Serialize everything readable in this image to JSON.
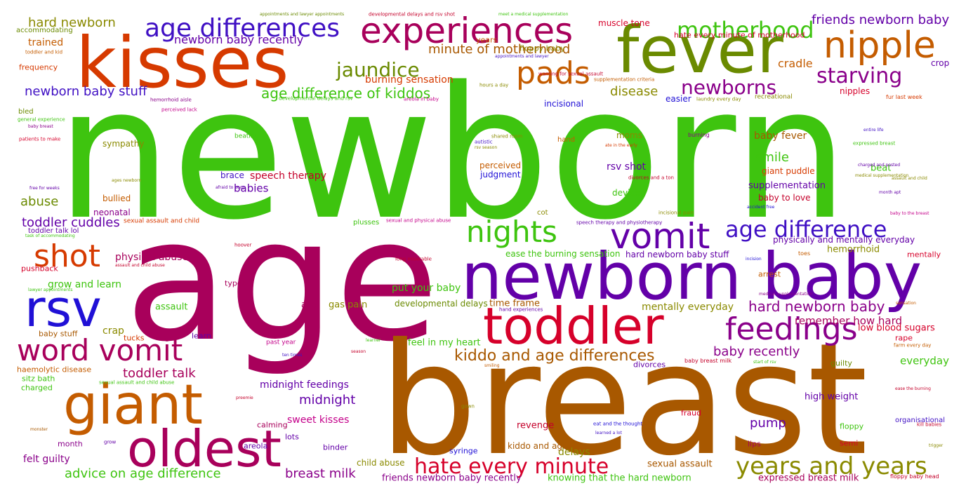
{
  "word_cloud": {
    "words": [
      {
        "text": "newborn",
        "color": "#3ec40f"
      },
      {
        "text": "age",
        "color": "#a8005b"
      },
      {
        "text": "breast",
        "color": "#a85800"
      },
      {
        "text": "kisses",
        "color": "#d63a00"
      },
      {
        "text": "fever",
        "color": "#6a8a00"
      },
      {
        "text": "experiences",
        "color": "#a8005b"
      },
      {
        "text": "newborn baby",
        "color": "#6300a8"
      },
      {
        "text": "toddler",
        "color": "#d6002a"
      },
      {
        "text": "giant",
        "color": "#c45c00"
      },
      {
        "text": "oldest",
        "color": "#a8005b"
      },
      {
        "text": "rsv",
        "color": "#2010d6"
      },
      {
        "text": "nipple",
        "color": "#c45c00"
      },
      {
        "text": "pads",
        "color": "#c45c00"
      },
      {
        "text": "vomit",
        "color": "#6300a8"
      },
      {
        "text": "nights",
        "color": "#3ec40f"
      },
      {
        "text": "shot",
        "color": "#d63a00"
      },
      {
        "text": "word vomit",
        "color": "#a8005b"
      },
      {
        "text": "feedings",
        "color": "#8a008a"
      },
      {
        "text": "age differences",
        "color": "#4010c4"
      },
      {
        "text": "motherhood",
        "color": "#3ec40f"
      },
      {
        "text": "age difference",
        "color": "#4010c4"
      },
      {
        "text": "years and years",
        "color": "#8a8a00"
      },
      {
        "text": "hate every minute",
        "color": "#d6002a"
      },
      {
        "text": "jaundice",
        "color": "#6a8a00"
      },
      {
        "text": "starving",
        "color": "#8a008a"
      },
      {
        "text": "newborns",
        "color": "#8a008a"
      },
      {
        "text": "hard newborn baby",
        "color": "#8a008a"
      },
      {
        "text": "kiddo and age differences",
        "color": "#a85800"
      },
      {
        "text": "age difference of kiddos",
        "color": "#3ec40f"
      },
      {
        "text": "newborn baby stuff",
        "color": "#4010c4"
      },
      {
        "text": "minute of motherhood",
        "color": "#a85800"
      },
      {
        "text": "friends newborn baby",
        "color": "#6300a8"
      },
      {
        "text": "newborn baby recently",
        "color": "#6300a8"
      },
      {
        "text": "hard newborn",
        "color": "#8a8a00"
      },
      {
        "text": "advice on age difference",
        "color": "#3ec40f"
      },
      {
        "text": "breast milk",
        "color": "#8a008a"
      },
      {
        "text": "baby recently",
        "color": "#8a008a"
      },
      {
        "text": "toddler talk",
        "color": "#a8005b"
      },
      {
        "text": "toddler cuddles",
        "color": "#6300a8"
      },
      {
        "text": "disease",
        "color": "#8a8a00"
      },
      {
        "text": "smile",
        "color": "#3ec40f"
      },
      {
        "text": "midnight",
        "color": "#6300a8"
      },
      {
        "text": "pump",
        "color": "#6300a8"
      },
      {
        "text": "abuse",
        "color": "#6a8a00"
      },
      {
        "text": "cradle",
        "color": "#c45c00"
      },
      {
        "text": "remember how hard",
        "color": "#a8005b"
      },
      {
        "text": "mentally everyday",
        "color": "#8a8a00"
      },
      {
        "text": "everyday",
        "color": "#3ec40f"
      },
      {
        "text": "rsv shot",
        "color": "#6300a8"
      },
      {
        "text": "trained",
        "color": "#c45c00"
      },
      {
        "text": "speech therapy",
        "color": "#c4002a"
      },
      {
        "text": "babies",
        "color": "#6300a8"
      },
      {
        "text": "midnight feedings",
        "color": "#6300a8"
      },
      {
        "text": "sweet kisses",
        "color": "#c4008a"
      },
      {
        "text": "felt guilty",
        "color": "#8a008a"
      },
      {
        "text": "delays",
        "color": "#8a8a00"
      },
      {
        "text": "baby fever",
        "color": "#a85800"
      },
      {
        "text": "burning sensation",
        "color": "#d63a00"
      },
      {
        "text": "physical abuse",
        "color": "#a8005b"
      },
      {
        "text": "grow and learn",
        "color": "#3ec40f"
      },
      {
        "text": "put your baby",
        "color": "#3ec40f"
      },
      {
        "text": "hemorrhoid",
        "color": "#8a8a00"
      },
      {
        "text": "assault",
        "color": "#3ec40f"
      },
      {
        "text": "gas pain",
        "color": "#8a8a00"
      },
      {
        "text": "ate",
        "color": "#a8005b"
      },
      {
        "text": "time frame",
        "color": "#a85800"
      },
      {
        "text": "developmental delays",
        "color": "#6a8a00"
      },
      {
        "text": "crap",
        "color": "#8a8a00"
      },
      {
        "text": "feel in my heart",
        "color": "#3ec40f"
      },
      {
        "text": "high weight",
        "color": "#6300a8"
      },
      {
        "text": "supplementation",
        "color": "#6300a8"
      },
      {
        "text": "low blood sugars",
        "color": "#d6002a"
      },
      {
        "text": "sexual assault",
        "color": "#a85800"
      },
      {
        "text": "friends newborn baby recently",
        "color": "#8a008a"
      },
      {
        "text": "knowing that the hard newborn",
        "color": "#3ec40f"
      },
      {
        "text": "expressed breast milk",
        "color": "#a8005b"
      },
      {
        "text": "child abuse",
        "color": "#8a8a00"
      },
      {
        "text": "revenge",
        "color": "#c4002a"
      },
      {
        "text": "kiddo and age",
        "color": "#a85800"
      },
      {
        "text": "physically and mentally everyday",
        "color": "#6300a8"
      },
      {
        "text": "hard newborn baby stuff",
        "color": "#6300a8"
      },
      {
        "text": "ease the burning sensation",
        "color": "#3ec40f"
      },
      {
        "text": "giant puddle",
        "color": "#d63a00"
      },
      {
        "text": "baby to love",
        "color": "#c4002a"
      },
      {
        "text": "beat",
        "color": "#3ec40f"
      },
      {
        "text": "perceived",
        "color": "#c45c00"
      },
      {
        "text": "judgment",
        "color": "#2010d6"
      },
      {
        "text": "bullied",
        "color": "#c45c00"
      },
      {
        "text": "neonatal",
        "color": "#8a008a"
      },
      {
        "text": "device",
        "color": "#3ec40f"
      },
      {
        "text": "brace",
        "color": "#4010c4"
      },
      {
        "text": "sympathy",
        "color": "#8a8a00"
      },
      {
        "text": "moms",
        "color": "#8a8a00"
      },
      {
        "text": "incisional",
        "color": "#2010d6"
      },
      {
        "text": "easier",
        "color": "#2010d6"
      },
      {
        "text": "crop",
        "color": "#6300a8"
      },
      {
        "text": "nipples",
        "color": "#d6002a"
      },
      {
        "text": "muscle tone",
        "color": "#d6002a"
      },
      {
        "text": "hate every minute of motherhood",
        "color": "#d6002a"
      },
      {
        "text": "floppy baby",
        "color": "#8a8a00"
      },
      {
        "text": "years",
        "color": "#c45c00"
      },
      {
        "text": "frequency",
        "color": "#d63a00"
      },
      {
        "text": "accommodating",
        "color": "#6a8a00"
      },
      {
        "text": "bled",
        "color": "#6a8a00"
      },
      {
        "text": "hand",
        "color": "#c45c00"
      },
      {
        "text": "cot",
        "color": "#8a8a00"
      },
      {
        "text": "plusses",
        "color": "#3ec40f"
      },
      {
        "text": "arrest",
        "color": "#c45c00"
      },
      {
        "text": "mentally",
        "color": "#d6002a"
      },
      {
        "text": "typed",
        "color": "#a8005b"
      },
      {
        "text": "pushback",
        "color": "#d6002a"
      },
      {
        "text": "baby stuff",
        "color": "#a85800"
      },
      {
        "text": "tucks",
        "color": "#d63a00"
      },
      {
        "text": "learn",
        "color": "#6300a8"
      },
      {
        "text": "haemolytic disease",
        "color": "#c45c00"
      },
      {
        "text": "sitz bath",
        "color": "#3ec40f"
      },
      {
        "text": "charged",
        "color": "#3ec40f"
      },
      {
        "text": "calming",
        "color": "#a8005b"
      },
      {
        "text": "lots",
        "color": "#6300a8"
      },
      {
        "text": "areola",
        "color": "#6300a8"
      },
      {
        "text": "binder",
        "color": "#6300a8"
      },
      {
        "text": "month",
        "color": "#8a008a"
      },
      {
        "text": "syringe",
        "color": "#2010d6"
      },
      {
        "text": "fraud",
        "color": "#d6002a"
      },
      {
        "text": "floppy",
        "color": "#3ec40f"
      },
      {
        "text": "semi",
        "color": "#d6002a"
      },
      {
        "text": "lips",
        "color": "#a8005b"
      },
      {
        "text": "organisational",
        "color": "#4010c4"
      },
      {
        "text": "guilty",
        "color": "#6a8a00"
      },
      {
        "text": "divorces",
        "color": "#6300a8"
      },
      {
        "text": "rape",
        "color": "#d6002a"
      },
      {
        "text": "recreational",
        "color": "#8a8a00"
      },
      {
        "text": "beating",
        "color": "#3ec40f"
      },
      {
        "text": "toddler talk lol",
        "color": "#6300a8"
      },
      {
        "text": "sexual assault and child",
        "color": "#d63a00"
      },
      {
        "text": "toddler and kid",
        "color": "#c45c00"
      },
      {
        "text": "warning for sexual assault",
        "color": "#c4002a"
      },
      {
        "text": "hemorrhoid aisle",
        "color": "#8a008a"
      },
      {
        "text": "perceived lack",
        "color": "#c4008a"
      },
      {
        "text": "developmental delays and rsv",
        "color": "#3ec40f"
      },
      {
        "text": "areola in baby",
        "color": "#c4008a"
      },
      {
        "text": "hours a day",
        "color": "#8a8a00"
      },
      {
        "text": "supplementation criteria",
        "color": "#c45c00"
      },
      {
        "text": "laundry every day",
        "color": "#8a8a00"
      },
      {
        "text": "fur last week",
        "color": "#d63a00"
      },
      {
        "text": "appointments and lawyer appointments",
        "color": "#6a8a00"
      },
      {
        "text": "developmental delays and rsv shot",
        "color": "#c4002a"
      },
      {
        "text": "meet a medical supplementation",
        "color": "#3ec40f"
      },
      {
        "text": "appointments and lawyer",
        "color": "#4010c4"
      },
      {
        "text": "general experience",
        "color": "#3ec40f"
      },
      {
        "text": "baby breast",
        "color": "#8a008a"
      },
      {
        "text": "patients to make",
        "color": "#d6002a"
      },
      {
        "text": "shared room",
        "color": "#8a8a00"
      },
      {
        "text": "autistic",
        "color": "#4010c4"
      },
      {
        "text": "rsv season",
        "color": "#8a8a00"
      },
      {
        "text": "burning",
        "color": "#8a008a"
      },
      {
        "text": "expressed breast",
        "color": "#3ec40f"
      },
      {
        "text": "ate in the early",
        "color": "#d63a00"
      },
      {
        "text": "divorces and a ton",
        "color": "#c4002a"
      },
      {
        "text": "charged and posted",
        "color": "#6300a8"
      },
      {
        "text": "medical supplementation",
        "color": "#8a8a00"
      },
      {
        "text": "entire life",
        "color": "#4010c4"
      },
      {
        "text": "assault and child",
        "color": "#8a8a00"
      },
      {
        "text": "month apt",
        "color": "#6300a8"
      },
      {
        "text": "accident free",
        "color": "#2010d6"
      },
      {
        "text": "baby to the breast",
        "color": "#c4008a"
      },
      {
        "text": "ages newborn",
        "color": "#8a8a00"
      },
      {
        "text": "free for weeks",
        "color": "#6300a8"
      },
      {
        "text": "afraid to poop",
        "color": "#6300a8"
      },
      {
        "text": "incisional pain",
        "color": "#8a8a00"
      },
      {
        "text": "sexual and physical abuse",
        "color": "#c4008a"
      },
      {
        "text": "speech therapy and physiotherapy",
        "color": "#6300a8"
      },
      {
        "text": "task of accommodating",
        "color": "#3ec40f"
      },
      {
        "text": "hoover",
        "color": "#c4002a"
      },
      {
        "text": "assault and child abuse",
        "color": "#c4002a"
      },
      {
        "text": "long miserable",
        "color": "#c4002a"
      },
      {
        "text": "toes",
        "color": "#c45c00"
      },
      {
        "text": "incision",
        "color": "#2010d6"
      },
      {
        "text": "lawyer appointments",
        "color": "#3ec40f"
      },
      {
        "text": "hand experiences",
        "color": "#6300a8"
      },
      {
        "text": "medical supplementation",
        "color": "#8a008a"
      },
      {
        "text": "sensation",
        "color": "#c45c00"
      },
      {
        "text": "learner",
        "color": "#3ec40f"
      },
      {
        "text": "season",
        "color": "#c4002a"
      },
      {
        "text": "ten times",
        "color": "#4010c4"
      },
      {
        "text": "past year",
        "color": "#c4008a"
      },
      {
        "text": "smiling",
        "color": "#c45c00"
      },
      {
        "text": "baby breast milk",
        "color": "#c4002a"
      },
      {
        "text": "start of rsv",
        "color": "#3ec40f"
      },
      {
        "text": "farm every day",
        "color": "#c45c00"
      },
      {
        "text": "sexual assault and child abuse",
        "color": "#3ec40f"
      },
      {
        "text": "preemie",
        "color": "#c4002a"
      },
      {
        "text": "gown",
        "color": "#8a8a00"
      },
      {
        "text": "eat and the thought",
        "color": "#2010d6"
      },
      {
        "text": "learned a lot",
        "color": "#4010c4"
      },
      {
        "text": "ease the burning",
        "color": "#c4002a"
      },
      {
        "text": "kill babies",
        "color": "#c4002a"
      },
      {
        "text": "monster",
        "color": "#a85800"
      },
      {
        "text": "grow",
        "color": "#6300a8"
      },
      {
        "text": "trigger",
        "color": "#8a8a00"
      },
      {
        "text": "floppy baby head",
        "color": "#c4002a"
      }
    ]
  }
}
